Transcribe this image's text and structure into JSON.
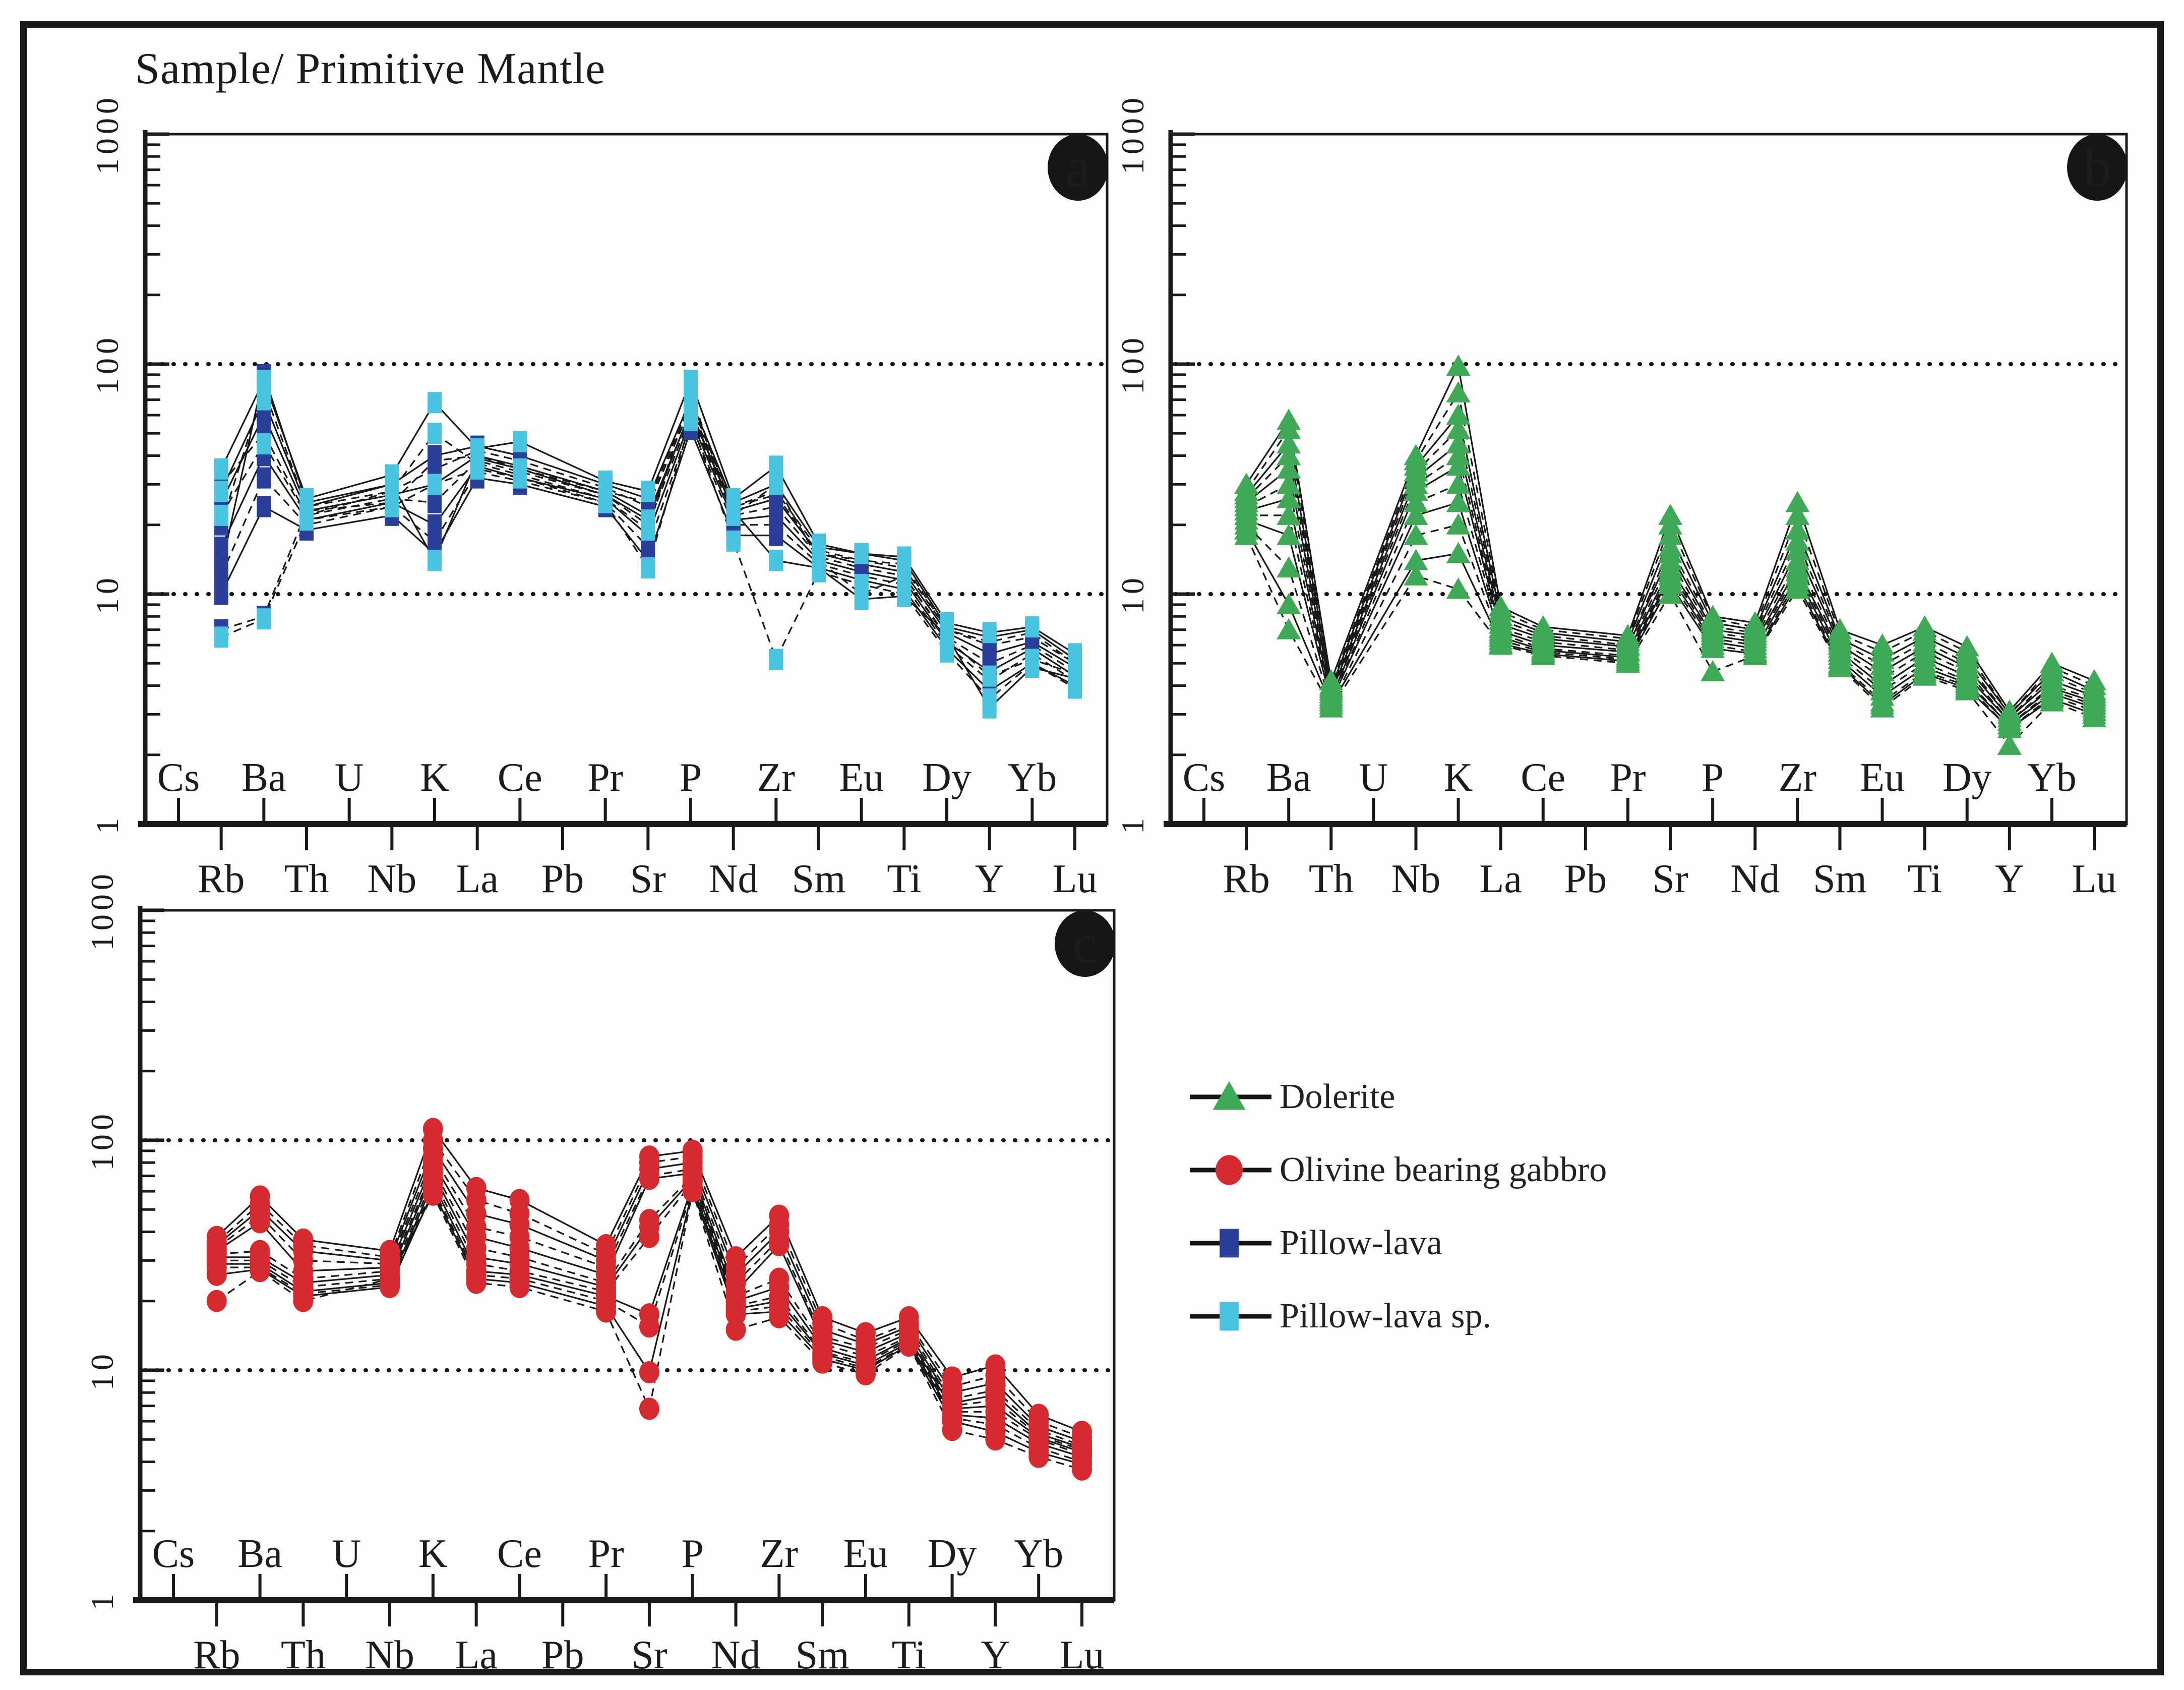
{
  "figure": {
    "title": "Sample/ Primitive Mantle",
    "background": "#fdfdfb",
    "frame_color": "#1a1a1a",
    "line_color": "#1a1a1a"
  },
  "axis": {
    "y_scale": "log",
    "ylim": [
      1,
      1000
    ],
    "y_ticks": [
      "1000",
      "100",
      "10",
      "1"
    ],
    "gridlines_at": [
      100,
      10
    ],
    "grid_style": "dotted",
    "elements": [
      "Cs",
      "Rb",
      "Ba",
      "Th",
      "U",
      "Nb",
      "K",
      "La",
      "Ce",
      "Pb",
      "Pr",
      "Sr",
      "P",
      "Nd",
      "Zr",
      "Sm",
      "Eu",
      "Ti",
      "Dy",
      "Y",
      "Yb",
      "Lu"
    ],
    "plotted_grid_indices": [
      1,
      2,
      3,
      5,
      6,
      7,
      8,
      10,
      11,
      12,
      13,
      14,
      15,
      16,
      17,
      18,
      19,
      20,
      21
    ]
  },
  "legend": {
    "items": [
      {
        "label": "Dolerite",
        "marker": "triangle",
        "color": "#3fa958"
      },
      {
        "label": "Olivine bearing gabbro",
        "marker": "circle",
        "color": "#d42a30"
      },
      {
        "label": "Pillow-lava",
        "marker": "square",
        "color": "#2a3f99"
      },
      {
        "label": "Pillow-lava sp.",
        "marker": "square",
        "color": "#49c3e0"
      }
    ]
  },
  "chart_data": [
    {
      "id": "a",
      "panel_label": "a",
      "type": "line",
      "y_scale": "log",
      "ylim": [
        1,
        1000
      ],
      "categories": [
        "Rb",
        "Ba",
        "Th",
        "Nb",
        "K",
        "La",
        "Ce",
        "Pr",
        "Sr",
        "P",
        "Nd",
        "Zr",
        "Sm",
        "Eu",
        "Ti",
        "Dy",
        "Y",
        "Yb",
        "Lu"
      ],
      "series": [
        {
          "name": "Pillow-lava",
          "marker": "square",
          "color": "#2a3f99",
          "samples": [
            [
              13,
              90,
              25,
              30,
              40,
              44,
              40,
              30,
              26,
              70,
              25,
              30,
              16,
              15,
              14,
              7.2,
              6.5,
              7,
              5.2
            ],
            [
              20,
              78,
              24,
              28,
              35,
              42,
              38,
              29,
              24,
              65,
              24,
              28,
              15.5,
              14,
              13,
              7,
              6,
              6.5,
              5
            ],
            [
              25,
              60,
              23,
              27,
              30,
              40,
              36,
              28,
              22,
              62,
              23,
              26,
              15,
              13.5,
              12.5,
              6.8,
              5.5,
              6.2,
              4.8
            ],
            [
              30,
              50,
              22,
              26,
              25,
              38,
              34,
              27,
              20,
              60,
              22,
              24,
              14.5,
              13,
              12,
              6.5,
              5,
              6,
              4.6
            ],
            [
              16,
              40,
              21,
              25,
              20,
              36,
              32,
              26,
              18,
              58,
              21,
              22,
              14,
              12.5,
              11.5,
              6.2,
              4.6,
              5.8,
              4.4
            ],
            [
              12,
              32,
              20,
              24,
              17,
              34,
              31,
              25,
              16,
              55,
              20,
              20,
              13.5,
              12,
              11,
              6,
              4.2,
              5.5,
              4.2
            ],
            [
              10,
              24,
              19,
              22,
              15,
              32,
              30,
              24,
              14,
              52,
              18,
              18,
              13,
              11.5,
              10.5,
              5.8,
              3.8,
              5,
              4
            ],
            [
              7,
              8,
              23,
              25,
              38,
              40,
              35,
              28,
              25,
              68,
              24,
              27,
              15,
              14,
              13.5,
              7,
              6.2,
              6.8,
              5
            ]
          ]
        },
        {
          "name": "Pillow-lava sp.",
          "marker": "square",
          "color": "#49c3e0",
          "samples": [
            [
              35,
              85,
              26,
              33,
              68,
              43,
              46,
              31,
              28,
              85,
              26,
              36,
              16.5,
              15,
              14.5,
              7.5,
              6.8,
              7.2,
              5.5
            ],
            [
              22,
              45,
              22,
              28,
              50,
              37,
              33,
              26,
              19,
              75,
              22,
              30,
              14,
              10,
              12,
              6.4,
              4.4,
              5.2,
              4.5
            ],
            [
              28,
              70,
              24,
              30,
              14,
              39,
              35,
              27,
              21,
              63,
              23,
              14,
              13,
              9.5,
              9.8,
              6.6,
              3.2,
              4.8,
              4.3
            ],
            [
              6.5,
              7.8,
              21,
              24,
              30,
              35,
              32,
              25,
              13,
              57,
              17,
              5.2,
              12.5,
              11,
              10,
              5.6,
              3.5,
              5,
              3.9
            ]
          ]
        }
      ]
    },
    {
      "id": "b",
      "panel_label": "b",
      "type": "line",
      "y_scale": "log",
      "ylim": [
        1,
        1000
      ],
      "categories": [
        "Rb",
        "Ba",
        "Th",
        "Nb",
        "K",
        "La",
        "Ce",
        "Pr",
        "Sr",
        "P",
        "Nd",
        "Zr",
        "Sm",
        "Eu",
        "Ti",
        "Dy",
        "Y",
        "Yb",
        "Lu"
      ],
      "series": [
        {
          "name": "Dolerite",
          "marker": "triangle",
          "color": "#3fa958",
          "samples": [
            [
              30,
              57,
              4.2,
              40,
              98,
              8.8,
              7.2,
              6.6,
              22,
              8,
              7.5,
              25,
              7,
              6,
              7.2,
              5.9,
              3.1,
              5,
              4.2
            ],
            [
              28,
              52,
              4.0,
              38,
              75,
              8.4,
              7.0,
              6.4,
              20,
              7.8,
              7.2,
              22,
              6.7,
              5.6,
              6.9,
              5.6,
              3.0,
              4.8,
              4.0
            ],
            [
              27,
              45,
              3.9,
              36,
              60,
              8.0,
              6.8,
              6.2,
              18,
              7.5,
              7.0,
              19,
              6.4,
              5.2,
              6.5,
              5.3,
              3.0,
              4.6,
              3.8
            ],
            [
              26,
              40,
              3.8,
              34,
              52,
              7.7,
              6.6,
              6.0,
              16,
              7.2,
              6.8,
              17,
              6.2,
              4.9,
              6.2,
              5.0,
              2.9,
              4.4,
              3.7
            ],
            [
              25,
              35,
              3.7,
              32,
              45,
              7.4,
              6.4,
              5.9,
              15,
              7.0,
              6.6,
              15.5,
              6.0,
              4.6,
              5.9,
              4.8,
              2.9,
              4.2,
              3.6
            ],
            [
              24,
              30,
              3.6,
              30,
              40,
              7.1,
              6.2,
              5.7,
              14,
              6.8,
              6.4,
              14,
              5.8,
              4.3,
              5.6,
              4.6,
              2.8,
              4.0,
              3.5
            ],
            [
              23,
              26,
              3.5,
              28,
              36,
              6.9,
              6.0,
              5.6,
              13,
              6.6,
              6.2,
              13,
              5.6,
              4.0,
              5.3,
              4.4,
              2.8,
              3.9,
              3.4
            ],
            [
              22,
              22,
              3.4,
              25,
              30,
              6.7,
              5.8,
              5.4,
              12.5,
              6.4,
              6.0,
              12.5,
              5.4,
              3.8,
              5.0,
              4.2,
              2.7,
              3.8,
              3.3
            ],
            [
              21,
              18,
              3.4,
              22,
              25,
              6.5,
              5.7,
              5.3,
              12,
              6.2,
              5.8,
              12,
              5.2,
              3.6,
              4.8,
              4.1,
              2.7,
              3.7,
              3.2
            ],
            [
              20,
              13,
              3.3,
              18,
              20,
              6.3,
              5.6,
              5.2,
              11.5,
              6.0,
              5.6,
              11.5,
              5.0,
              3.4,
              4.6,
              4.0,
              2.6,
              3.6,
              3.1
            ],
            [
              19,
              9,
              3.3,
              14,
              15,
              6.1,
              5.5,
              5.1,
              11,
              5.8,
              5.5,
              11,
              4.9,
              3.3,
              4.5,
              3.9,
              2.6,
              3.5,
              3.0
            ],
            [
              18,
              7,
              3.2,
              12,
              10.5,
              6.0,
              5.4,
              5.0,
              10,
              4.6,
              5.4,
              10.5,
              4.8,
              3.2,
              4.4,
              3.8,
              2.2,
              3.4,
              2.9
            ]
          ]
        }
      ]
    },
    {
      "id": "c",
      "panel_label": "c",
      "type": "line",
      "y_scale": "log",
      "ylim": [
        1,
        1000
      ],
      "categories": [
        "Rb",
        "Ba",
        "Th",
        "Nb",
        "K",
        "La",
        "Ce",
        "Pr",
        "Sr",
        "P",
        "Nd",
        "Zr",
        "Sm",
        "Eu",
        "Ti",
        "Dy",
        "Y",
        "Yb",
        "Lu"
      ],
      "series": [
        {
          "name": "Olivine bearing gabbro",
          "marker": "circle",
          "color": "#d42a30",
          "samples": [
            [
              38,
              57,
              37,
              33,
              112,
              62,
              55,
              35,
              85,
              90,
              31,
              47,
              17,
              14.5,
              17,
              9.3,
              10.5,
              6.4,
              5.4
            ],
            [
              36,
              53,
              35,
              31,
              100,
              55,
              48,
              32,
              80,
              85,
              28,
              43,
              16,
              13.5,
              16,
              8.5,
              9.5,
              6.0,
              5.1
            ],
            [
              35,
              50,
              33,
              30,
              92,
              48,
              43,
              30,
              75,
              80,
              26,
              40,
              15,
              13,
              15.5,
              8,
              8.8,
              5.7,
              4.9
            ],
            [
              34,
              47,
              30,
              29,
              85,
              42,
              38,
              28,
              70,
              75,
              24,
              37,
              14,
              12.5,
              15,
              7.5,
              8.2,
              5.5,
              4.7
            ],
            [
              33,
              44,
              27,
              28,
              80,
              38,
              34,
              26,
              68,
              72,
              22,
              35,
              13.5,
              12,
              14.5,
              7.2,
              7.8,
              5.3,
              4.6
            ],
            [
              32,
              33,
              25,
              27,
              75,
              34,
              31,
              24,
              45,
              70,
              21,
              25,
              13,
              11.5,
              14,
              7,
              7.4,
              5.2,
              4.5
            ],
            [
              31,
              31,
              24,
              26,
              72,
              31,
              29,
              23,
              42,
              68,
              20,
              23,
              12.5,
              11,
              13.8,
              6.8,
              7,
              5.1,
              4.4
            ],
            [
              30,
              30,
              23,
              25,
              68,
              29,
              27,
              22,
              38,
              66,
              19,
              21,
              12,
              10.8,
              13.5,
              6.6,
              6.6,
              5,
              4.3
            ],
            [
              29,
              29,
              22,
              24,
              65,
              27,
              26,
              21,
              17.5,
              64,
              18.5,
              20,
              11.8,
              10.5,
              13.2,
              6.4,
              6.2,
              4.8,
              4.2
            ],
            [
              28,
              28,
              21.5,
              23.5,
              62,
              26,
              25,
              20,
              15.5,
              62,
              18,
              19,
              11.5,
              10.2,
              13,
              6.2,
              5.8,
              4.6,
              4.0
            ],
            [
              26,
              27.5,
              21,
              23,
              60,
              25,
              24,
              19,
              9.8,
              61,
              17.5,
              18,
              11.2,
              10,
              12.9,
              6,
              5.4,
              4.4,
              3.9
            ],
            [
              20,
              27,
              20,
              25,
              58,
              24,
              23,
              18,
              6.8,
              60,
              15,
              17,
              10.8,
              9.6,
              12.8,
              5.5,
              5,
              4.2,
              3.7
            ]
          ]
        }
      ]
    }
  ]
}
